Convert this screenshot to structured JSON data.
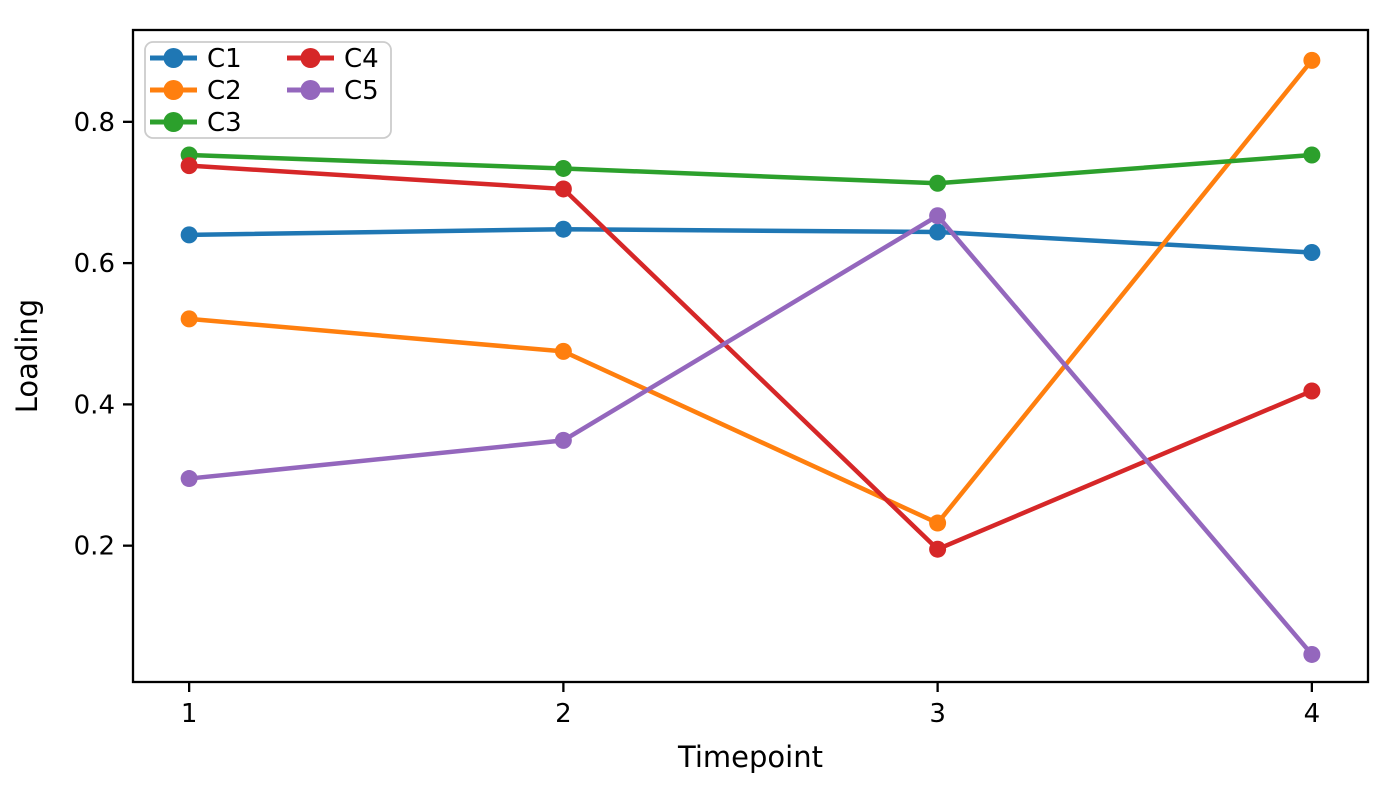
{
  "chart_data": {
    "type": "line",
    "x": [
      1,
      2,
      3,
      4
    ],
    "series": [
      {
        "name": "C1",
        "color": "#1f77b4",
        "values": [
          0.64,
          0.648,
          0.644,
          0.615
        ]
      },
      {
        "name": "C2",
        "color": "#ff7f0e",
        "values": [
          0.521,
          0.475,
          0.232,
          0.887
        ]
      },
      {
        "name": "C3",
        "color": "#2ca02c",
        "values": [
          0.753,
          0.734,
          0.713,
          0.753
        ]
      },
      {
        "name": "C4",
        "color": "#d62728",
        "values": [
          0.738,
          0.705,
          0.195,
          0.419
        ]
      },
      {
        "name": "C5",
        "color": "#9467bd",
        "values": [
          0.295,
          0.349,
          0.667,
          0.046
        ]
      }
    ],
    "xlabel": "Timepoint",
    "ylabel": "Loading",
    "xticks": [
      1,
      2,
      3,
      4
    ],
    "xtick_labels": [
      "1",
      "2",
      "3",
      "4"
    ],
    "yticks": [
      0.2,
      0.4,
      0.6,
      0.8
    ],
    "ytick_labels": [
      "0.2",
      "0.4",
      "0.6",
      "0.8"
    ],
    "xlim": [
      0.85,
      4.15
    ],
    "ylim": [
      0.007,
      0.93
    ],
    "grid": false,
    "legend": {
      "position": "upper-left",
      "columns": 2,
      "column_order": [
        [
          "C1",
          "C2",
          "C3"
        ],
        [
          "C4",
          "C5"
        ]
      ]
    },
    "style": {
      "spine_color": "#000000",
      "tick_color": "#000000",
      "text_color": "#000000",
      "legend_border_color": "#cccccc",
      "legend_bg_color": "#ffffff",
      "marker_radius": 8.5,
      "line_width": 4.5
    }
  }
}
